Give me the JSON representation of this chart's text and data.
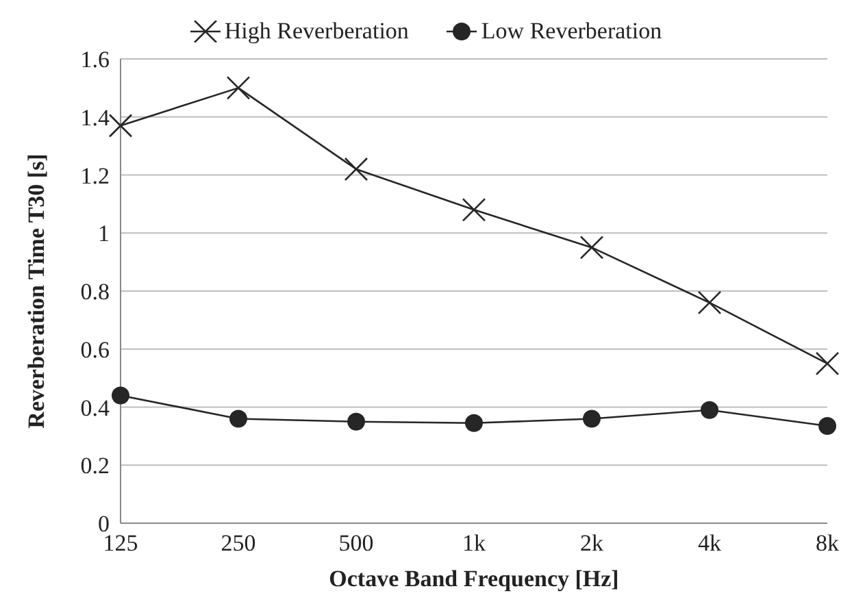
{
  "chart_data": {
    "type": "line",
    "xlabel": "Octave Band Frequency [Hz]",
    "ylabel": "Reverberation Time T30 [s]",
    "categories": [
      "125",
      "250",
      "500",
      "1k",
      "2k",
      "4k",
      "8k"
    ],
    "series": [
      {
        "name": "High Reverberation",
        "color": "#262626",
        "marker": "cross",
        "values": [
          1.37,
          1.5,
          1.22,
          1.08,
          0.95,
          0.76,
          0.55
        ]
      },
      {
        "name": "Low Reverberation",
        "color": "#262626",
        "marker": "circle",
        "values": [
          0.44,
          0.36,
          0.35,
          0.345,
          0.36,
          0.39,
          0.335
        ]
      }
    ],
    "ylim": [
      0,
      1.6
    ],
    "yticks": [
      0,
      0.2,
      0.4,
      0.6,
      0.8,
      1,
      1.2,
      1.4,
      1.6
    ],
    "grid": "y",
    "legend": "top"
  }
}
